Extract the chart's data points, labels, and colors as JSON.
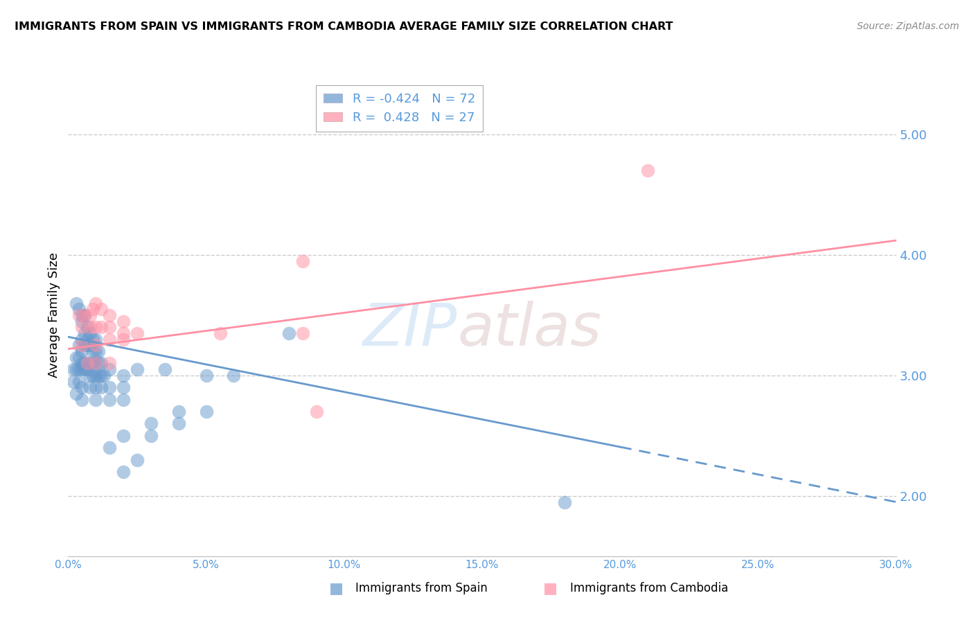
{
  "title": "IMMIGRANTS FROM SPAIN VS IMMIGRANTS FROM CAMBODIA AVERAGE FAMILY SIZE CORRELATION CHART",
  "source": "Source: ZipAtlas.com",
  "ylabel": "Average Family Size",
  "yticks": [
    2.0,
    3.0,
    4.0,
    5.0
  ],
  "xlim": [
    0.0,
    30.0
  ],
  "ylim": [
    1.5,
    5.5
  ],
  "legend_blue_r": "-0.424",
  "legend_blue_n": "72",
  "legend_pink_r": "0.428",
  "legend_pink_n": "27",
  "color_blue": "#6699CC",
  "color_pink": "#FF8FA3",
  "color_axis_label": "#5599DD",
  "watermark_zip": "ZIP",
  "watermark_atlas": "atlas",
  "blue_scatter": [
    [
      0.3,
      3.6
    ],
    [
      0.4,
      3.55
    ],
    [
      0.5,
      3.5
    ],
    [
      0.5,
      3.45
    ],
    [
      0.6,
      3.5
    ],
    [
      0.5,
      3.3
    ],
    [
      0.6,
      3.35
    ],
    [
      0.7,
      3.4
    ],
    [
      0.7,
      3.3
    ],
    [
      0.8,
      3.35
    ],
    [
      0.9,
      3.3
    ],
    [
      1.0,
      3.3
    ],
    [
      0.4,
      3.25
    ],
    [
      0.5,
      3.2
    ],
    [
      0.6,
      3.25
    ],
    [
      0.7,
      3.25
    ],
    [
      0.8,
      3.25
    ],
    [
      0.9,
      3.2
    ],
    [
      1.0,
      3.2
    ],
    [
      1.1,
      3.2
    ],
    [
      0.3,
      3.15
    ],
    [
      0.4,
      3.15
    ],
    [
      0.5,
      3.1
    ],
    [
      0.6,
      3.1
    ],
    [
      0.7,
      3.1
    ],
    [
      0.8,
      3.1
    ],
    [
      0.9,
      3.1
    ],
    [
      1.0,
      3.1
    ],
    [
      1.1,
      3.1
    ],
    [
      1.2,
      3.1
    ],
    [
      0.2,
      3.05
    ],
    [
      0.3,
      3.05
    ],
    [
      0.4,
      3.05
    ],
    [
      0.5,
      3.05
    ],
    [
      0.6,
      3.05
    ],
    [
      0.7,
      3.05
    ],
    [
      0.8,
      3.0
    ],
    [
      0.9,
      3.0
    ],
    [
      1.0,
      3.0
    ],
    [
      1.1,
      3.0
    ],
    [
      1.2,
      3.0
    ],
    [
      1.3,
      3.0
    ],
    [
      1.5,
      3.05
    ],
    [
      2.0,
      3.0
    ],
    [
      2.5,
      3.05
    ],
    [
      0.2,
      2.95
    ],
    [
      0.4,
      2.95
    ],
    [
      0.5,
      2.9
    ],
    [
      0.8,
      2.9
    ],
    [
      1.0,
      2.9
    ],
    [
      1.2,
      2.9
    ],
    [
      1.5,
      2.9
    ],
    [
      2.0,
      2.9
    ],
    [
      0.3,
      2.85
    ],
    [
      0.5,
      2.8
    ],
    [
      1.0,
      2.8
    ],
    [
      1.5,
      2.8
    ],
    [
      2.0,
      2.8
    ],
    [
      3.5,
      3.05
    ],
    [
      5.0,
      3.0
    ],
    [
      6.0,
      3.0
    ],
    [
      4.0,
      2.7
    ],
    [
      5.0,
      2.7
    ],
    [
      3.0,
      2.6
    ],
    [
      4.0,
      2.6
    ],
    [
      2.0,
      2.5
    ],
    [
      3.0,
      2.5
    ],
    [
      1.5,
      2.4
    ],
    [
      2.5,
      2.3
    ],
    [
      2.0,
      2.2
    ],
    [
      18.0,
      1.95
    ],
    [
      8.0,
      3.35
    ]
  ],
  "pink_scatter": [
    [
      0.4,
      3.5
    ],
    [
      0.6,
      3.5
    ],
    [
      0.8,
      3.5
    ],
    [
      0.9,
      3.55
    ],
    [
      1.0,
      3.6
    ],
    [
      1.2,
      3.55
    ],
    [
      1.5,
      3.5
    ],
    [
      0.5,
      3.4
    ],
    [
      0.8,
      3.4
    ],
    [
      1.0,
      3.4
    ],
    [
      1.2,
      3.4
    ],
    [
      1.5,
      3.4
    ],
    [
      2.0,
      3.45
    ],
    [
      2.0,
      3.35
    ],
    [
      2.5,
      3.35
    ],
    [
      0.5,
      3.25
    ],
    [
      1.0,
      3.25
    ],
    [
      1.5,
      3.3
    ],
    [
      2.0,
      3.3
    ],
    [
      0.7,
      3.1
    ],
    [
      1.0,
      3.1
    ],
    [
      1.5,
      3.1
    ],
    [
      5.5,
      3.35
    ],
    [
      8.5,
      3.35
    ],
    [
      8.5,
      3.95
    ],
    [
      21.0,
      4.7
    ],
    [
      9.0,
      2.7
    ]
  ],
  "blue_line_x": [
    0.0,
    30.0
  ],
  "blue_line_y": [
    3.32,
    1.95
  ],
  "pink_line_x": [
    0.0,
    30.0
  ],
  "pink_line_y": [
    3.22,
    4.12
  ],
  "blue_dash_start_x": 20.0,
  "grid_color": "#CCCCCC",
  "background_color": "#FFFFFF"
}
